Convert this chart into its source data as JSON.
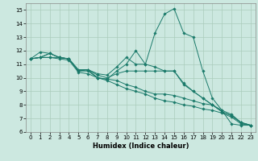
{
  "title": "",
  "xlabel": "Humidex (Indice chaleur)",
  "xlim": [
    -0.5,
    23.5
  ],
  "ylim": [
    6,
    15.5
  ],
  "yticks": [
    6,
    7,
    8,
    9,
    10,
    11,
    12,
    13,
    14,
    15
  ],
  "xticks": [
    0,
    1,
    2,
    3,
    4,
    5,
    6,
    7,
    8,
    9,
    10,
    11,
    12,
    13,
    14,
    15,
    16,
    17,
    18,
    19,
    20,
    21,
    22,
    23
  ],
  "bg_color": "#cce8e0",
  "line_color": "#1a7a6a",
  "grid_color": "#aaccbb",
  "lines": [
    {
      "x": [
        0,
        1,
        2,
        3,
        4,
        5,
        6,
        7,
        8,
        9,
        10,
        11,
        12,
        13,
        14,
        15,
        16,
        17,
        18,
        19,
        20,
        21,
        22,
        23
      ],
      "y": [
        11.4,
        11.9,
        11.8,
        11.5,
        11.4,
        10.5,
        10.6,
        10.0,
        9.9,
        10.5,
        11.0,
        12.0,
        11.0,
        13.3,
        14.7,
        15.1,
        13.3,
        13.0,
        10.5,
        8.5,
        7.6,
        6.6,
        6.5,
        6.5
      ]
    },
    {
      "x": [
        0,
        1,
        2,
        3,
        4,
        5,
        6,
        7,
        8,
        9,
        10,
        11,
        12,
        13,
        14,
        15,
        16,
        17,
        18,
        19,
        20,
        21,
        22,
        23
      ],
      "y": [
        11.4,
        11.5,
        11.8,
        11.5,
        11.4,
        10.6,
        10.6,
        10.2,
        10.0,
        10.3,
        10.5,
        10.5,
        10.5,
        10.5,
        10.5,
        10.5,
        9.5,
        9.0,
        8.5,
        8.0,
        7.5,
        7.2,
        6.7,
        6.5
      ]
    },
    {
      "x": [
        0,
        1,
        2,
        3,
        4,
        5,
        6,
        7,
        8,
        9,
        10,
        11,
        12,
        13,
        14,
        15,
        16,
        17,
        18,
        19,
        20,
        21,
        22,
        23
      ],
      "y": [
        11.4,
        11.5,
        11.5,
        11.5,
        11.4,
        10.5,
        10.5,
        10.0,
        9.9,
        9.8,
        9.5,
        9.3,
        9.0,
        8.8,
        8.8,
        8.7,
        8.5,
        8.3,
        8.1,
        8.0,
        7.5,
        7.2,
        6.7,
        6.5
      ]
    },
    {
      "x": [
        0,
        1,
        2,
        3,
        4,
        5,
        6,
        7,
        8,
        9,
        10,
        11,
        12,
        13,
        14,
        15,
        16,
        17,
        18,
        19,
        20,
        21,
        22,
        23
      ],
      "y": [
        11.4,
        11.5,
        11.5,
        11.4,
        11.3,
        10.4,
        10.3,
        10.0,
        9.8,
        9.5,
        9.2,
        9.0,
        8.8,
        8.5,
        8.3,
        8.2,
        8.0,
        7.9,
        7.7,
        7.6,
        7.4,
        7.1,
        6.6,
        6.5
      ]
    },
    {
      "x": [
        0,
        1,
        2,
        3,
        4,
        5,
        6,
        7,
        8,
        9,
        10,
        11,
        12,
        13,
        14,
        15,
        16,
        17,
        18,
        19,
        20,
        21,
        22,
        23
      ],
      "y": [
        11.4,
        11.5,
        11.8,
        11.5,
        11.4,
        10.5,
        10.6,
        10.3,
        10.2,
        10.8,
        11.5,
        11.0,
        11.0,
        10.8,
        10.5,
        10.5,
        9.6,
        9.0,
        8.5,
        8.0,
        7.6,
        7.3,
        6.7,
        6.5
      ]
    }
  ]
}
